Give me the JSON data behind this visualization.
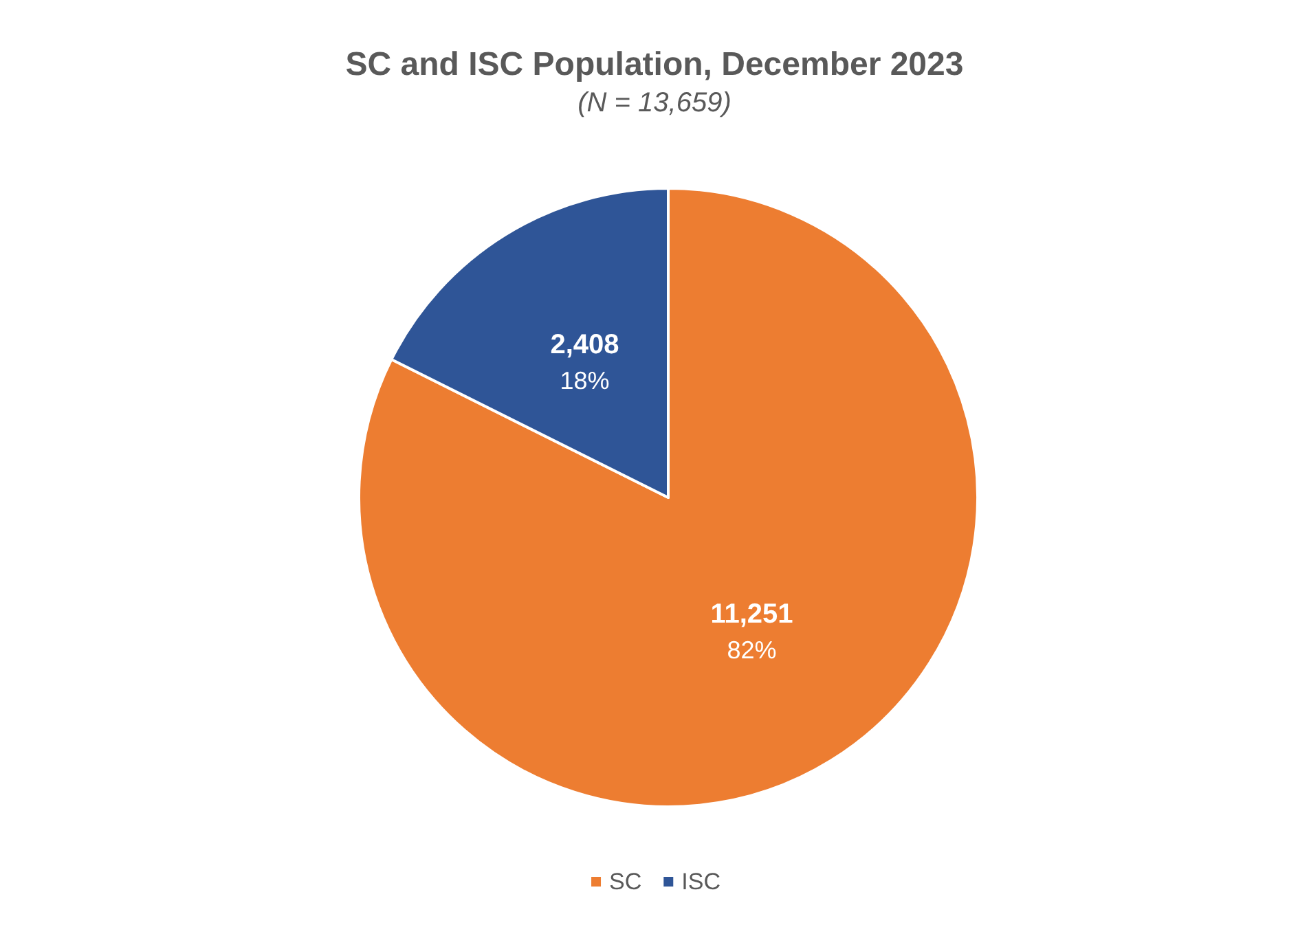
{
  "chart_data": {
    "type": "pie",
    "title": "SC and ISC Population, December 2023",
    "subtitle": "(N = 13,659)",
    "categories": [
      "SC",
      "ISC"
    ],
    "values": [
      11251,
      2408
    ],
    "colors": [
      "#ed7d31",
      "#2f5597"
    ],
    "value_labels": [
      "11,251\n82%",
      "2,408\n18%"
    ],
    "legend": "bottom"
  }
}
